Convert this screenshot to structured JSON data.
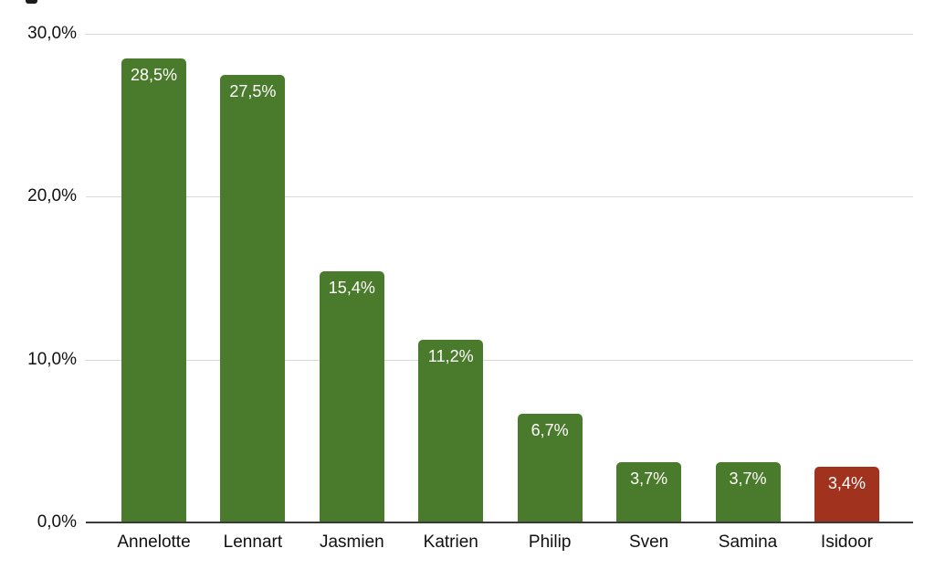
{
  "chart_data": {
    "type": "bar",
    "title": "",
    "xlabel": "",
    "ylabel": "",
    "categories": [
      "Annelotte",
      "Lennart",
      "Jasmien",
      "Katrien",
      "Philip",
      "Sven",
      "Samina",
      "Isidoor"
    ],
    "values": [
      28.5,
      27.5,
      15.4,
      11.2,
      6.7,
      3.7,
      3.7,
      3.4
    ],
    "value_labels": [
      "28,5%",
      "27,5%",
      "15,4%",
      "11,2%",
      "6,7%",
      "3,7%",
      "3,7%",
      "3,4%"
    ],
    "bar_colors": [
      "#4a7a2b",
      "#4a7a2b",
      "#4a7a2b",
      "#4a7a2b",
      "#4a7a2b",
      "#4a7a2b",
      "#4a7a2b",
      "#a0321e"
    ],
    "ylim": [
      0,
      30
    ],
    "y_ticks": [
      {
        "value": 0,
        "label": "0,0%"
      },
      {
        "value": 10,
        "label": "10,0%"
      },
      {
        "value": 20,
        "label": "20,0%"
      },
      {
        "value": 30,
        "label": "30,0%"
      }
    ],
    "grid": true,
    "legend": false,
    "decimal_separator": ",",
    "colors": {
      "bar_green": "#4a7a2b",
      "bar_red": "#a0321e",
      "gridline": "#d9d9d9",
      "axis_line": "#3a3a3a",
      "tick_text": "#111111",
      "value_text": "#ffffff",
      "background": "#ffffff"
    }
  }
}
